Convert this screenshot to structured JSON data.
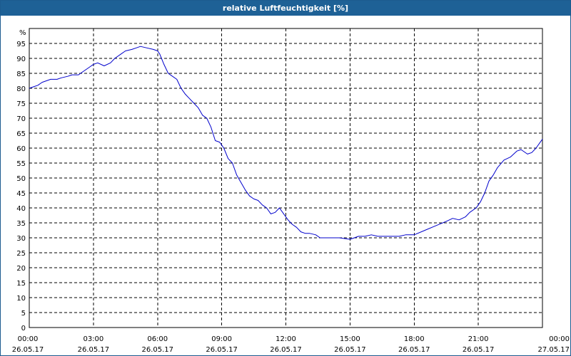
{
  "window": {
    "title": "relative Luftfeuchtigkeit [%]"
  },
  "colors": {
    "titlebar": "#1e6196",
    "line": "#0000cc",
    "grid": "#000000"
  },
  "chart_data": {
    "type": "line",
    "title": "relative Luftfeuchtigkeit [%]",
    "xlabel": "",
    "ylabel": "%",
    "ylim": [
      0,
      100
    ],
    "yticks": [
      0,
      5,
      10,
      15,
      20,
      25,
      30,
      35,
      40,
      45,
      50,
      55,
      60,
      65,
      70,
      75,
      80,
      85,
      90,
      95
    ],
    "grid": true,
    "xlim_hours": [
      0,
      24
    ],
    "xticks": [
      {
        "hour": 0,
        "time": "00:00",
        "date": "26.05.17"
      },
      {
        "hour": 3,
        "time": "03:00",
        "date": "26.05.17"
      },
      {
        "hour": 6,
        "time": "06:00",
        "date": "26.05.17"
      },
      {
        "hour": 9,
        "time": "09:00",
        "date": "26.05.17"
      },
      {
        "hour": 12,
        "time": "12:00",
        "date": "26.05.17"
      },
      {
        "hour": 15,
        "time": "15:00",
        "date": "26.05.17"
      },
      {
        "hour": 18,
        "time": "18:00",
        "date": "26.05.17"
      },
      {
        "hour": 21,
        "time": "21:00",
        "date": "26.05.17"
      },
      {
        "hour": 24,
        "time": "00:00",
        "date": "27.05.17"
      }
    ],
    "series": [
      {
        "points": [
          [
            0.0,
            80
          ],
          [
            0.2,
            80.5
          ],
          [
            0.4,
            81
          ],
          [
            0.6,
            82
          ],
          [
            0.8,
            82.5
          ],
          [
            1.0,
            83
          ],
          [
            1.3,
            83
          ],
          [
            1.5,
            83.5
          ],
          [
            1.8,
            84
          ],
          [
            2.0,
            84.5
          ],
          [
            2.3,
            84.5
          ],
          [
            2.5,
            85.5
          ],
          [
            2.8,
            87
          ],
          [
            3.0,
            88
          ],
          [
            3.2,
            88.5
          ],
          [
            3.5,
            87.5
          ],
          [
            3.8,
            88.5
          ],
          [
            4.0,
            90
          ],
          [
            4.3,
            91.5
          ],
          [
            4.5,
            92.5
          ],
          [
            4.8,
            93
          ],
          [
            5.0,
            93.5
          ],
          [
            5.2,
            94
          ],
          [
            5.5,
            93.5
          ],
          [
            5.8,
            93
          ],
          [
            6.0,
            92.5
          ],
          [
            6.1,
            91.5
          ],
          [
            6.3,
            88
          ],
          [
            6.5,
            85
          ],
          [
            6.7,
            84
          ],
          [
            6.9,
            83
          ],
          [
            7.1,
            80
          ],
          [
            7.3,
            78
          ],
          [
            7.5,
            76.5
          ],
          [
            7.7,
            75
          ],
          [
            7.9,
            73.5
          ],
          [
            8.1,
            71
          ],
          [
            8.3,
            70
          ],
          [
            8.5,
            67
          ],
          [
            8.7,
            62.5
          ],
          [
            8.9,
            62
          ],
          [
            9.1,
            60
          ],
          [
            9.3,
            56.5
          ],
          [
            9.5,
            55
          ],
          [
            9.7,
            51
          ],
          [
            9.9,
            48.5
          ],
          [
            10.1,
            46
          ],
          [
            10.3,
            44
          ],
          [
            10.5,
            43
          ],
          [
            10.7,
            42.5
          ],
          [
            10.9,
            41
          ],
          [
            11.1,
            40
          ],
          [
            11.3,
            38
          ],
          [
            11.5,
            38.5
          ],
          [
            11.7,
            40
          ],
          [
            11.9,
            38
          ],
          [
            12.1,
            36
          ],
          [
            12.3,
            34.5
          ],
          [
            12.5,
            33.5
          ],
          [
            12.7,
            32
          ],
          [
            12.9,
            31.5
          ],
          [
            13.1,
            31.5
          ],
          [
            13.4,
            31
          ],
          [
            13.6,
            30
          ],
          [
            14.0,
            30
          ],
          [
            14.5,
            30
          ],
          [
            15.0,
            29.5
          ],
          [
            15.2,
            30
          ],
          [
            15.4,
            30.5
          ],
          [
            15.7,
            30.5
          ],
          [
            16.0,
            31
          ],
          [
            16.3,
            30.5
          ],
          [
            16.6,
            30.5
          ],
          [
            17.0,
            30.5
          ],
          [
            17.3,
            30.5
          ],
          [
            17.6,
            31
          ],
          [
            18.0,
            31
          ],
          [
            18.5,
            32.5
          ],
          [
            19.0,
            34
          ],
          [
            19.5,
            35.5
          ],
          [
            19.8,
            36.5
          ],
          [
            20.1,
            36
          ],
          [
            20.4,
            37
          ],
          [
            20.6,
            38.5
          ],
          [
            20.9,
            40
          ],
          [
            21.1,
            42
          ],
          [
            21.3,
            45
          ],
          [
            21.5,
            49
          ],
          [
            21.7,
            51
          ],
          [
            21.9,
            53.5
          ],
          [
            22.2,
            56
          ],
          [
            22.5,
            57
          ],
          [
            22.8,
            59
          ],
          [
            23.0,
            59.5
          ],
          [
            23.3,
            58
          ],
          [
            23.5,
            58.5
          ],
          [
            23.7,
            60
          ],
          [
            23.9,
            62
          ],
          [
            24.0,
            63
          ]
        ]
      }
    ]
  }
}
